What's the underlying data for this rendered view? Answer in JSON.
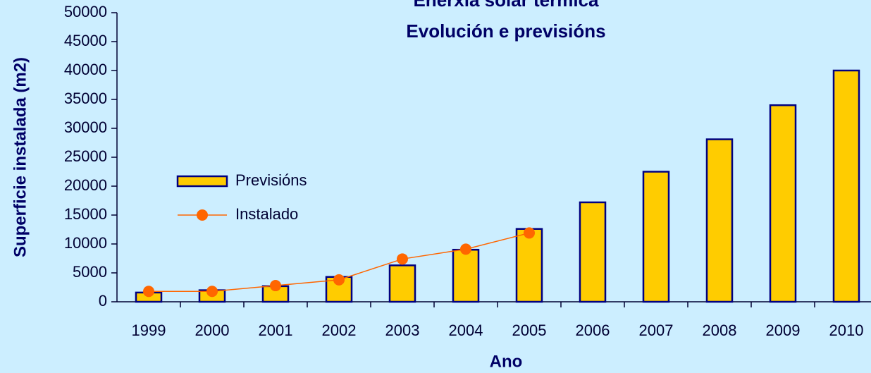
{
  "chart_data": {
    "type": "bar_line",
    "title": "Enerxía solar térmica",
    "subtitle": "Evolución e previsións",
    "x_label": "Ano",
    "y_label": "Superficie instalada (m2)",
    "categories": [
      "1999",
      "2000",
      "2001",
      "2002",
      "2003",
      "2004",
      "2005",
      "2006",
      "2007",
      "2008",
      "2009",
      "2010"
    ],
    "series": [
      {
        "name": "Previsións",
        "type": "bar",
        "color": "#ffcc00",
        "edge_color": "#000080",
        "values": [
          1600,
          2000,
          2700,
          4300,
          6300,
          9000,
          12600,
          17200,
          22500,
          28100,
          34000,
          40000
        ]
      },
      {
        "name": "Instalado",
        "type": "line",
        "color": "#ff6600",
        "values": [
          1800,
          1800,
          2800,
          3800,
          7400,
          9100,
          11900,
          null,
          null,
          null,
          null,
          null
        ]
      }
    ],
    "ylim": [
      0,
      50000
    ],
    "yticks": [
      0,
      5000,
      10000,
      15000,
      20000,
      25000,
      30000,
      35000,
      40000,
      45000,
      50000
    ],
    "grid": false,
    "legend": "left"
  }
}
